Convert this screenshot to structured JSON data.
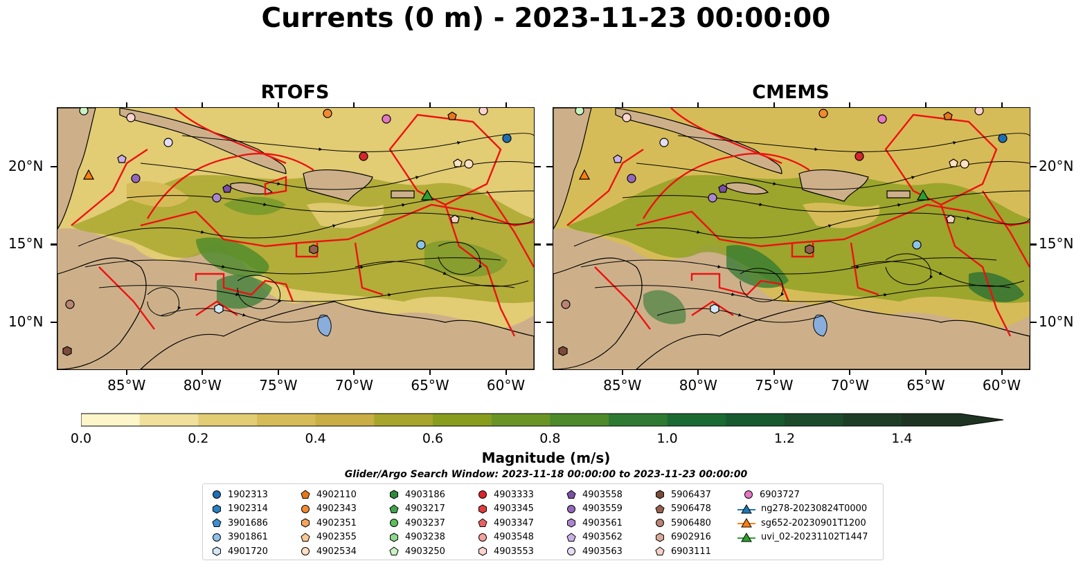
{
  "title": "Currents (0 m) - 2023-11-23 00:00:00",
  "panels": [
    {
      "title": "RTOFS"
    },
    {
      "title": "CMEMS"
    }
  ],
  "axes": {
    "lat_labels": [
      "20°N",
      "15°N",
      "10°N"
    ],
    "lon_labels": [
      "85°W",
      "80°W",
      "75°W",
      "70°W",
      "65°W",
      "60°W"
    ],
    "lat_values": [
      20,
      15,
      10
    ],
    "lon_values": [
      -85,
      -80,
      -75,
      -70,
      -65,
      -60
    ],
    "lon_range": [
      -89.6,
      -58.2
    ],
    "lat_range": [
      7.0,
      23.8
    ]
  },
  "colorbar": {
    "title": "Magnitude (m/s)",
    "tick_labels": [
      "0.0",
      "0.2",
      "0.4",
      "0.6",
      "0.8",
      "1.0",
      "1.2",
      "1.4"
    ],
    "ticks": [
      0.0,
      0.2,
      0.4,
      0.6,
      0.8,
      1.0,
      1.2,
      1.4
    ],
    "range": [
      0.0,
      1.5
    ],
    "extend": "max",
    "colors": [
      "#fcf6c9",
      "#efe19b",
      "#e2cc74",
      "#d6bc58",
      "#c8ae44",
      "#a8a52c",
      "#889d1e",
      "#6a9526",
      "#4c8a2a",
      "#2f7a32",
      "#1c6a33",
      "#175a2f",
      "#1b4b2a",
      "#1e3d26",
      "#1f3322"
    ]
  },
  "legend": {
    "title": "Glider/Argo Search Window: 2023-11-18 00:00:00 to 2023-11-23 00:00:00",
    "columns": [
      [
        {
          "label": "1902313",
          "marker": "circle",
          "color": "#1f6fb4"
        },
        {
          "label": "1902314",
          "marker": "hexagon",
          "color": "#2a80c0"
        },
        {
          "label": "3901686",
          "marker": "pentagon",
          "color": "#3d8fd1"
        },
        {
          "label": "3901861",
          "marker": "circle",
          "color": "#8cc2ea"
        },
        {
          "label": "4901720",
          "marker": "hexagon",
          "color": "#d4e7f7"
        }
      ],
      [
        {
          "label": "4902110",
          "marker": "pentagon",
          "color": "#e8761a"
        },
        {
          "label": "4902343",
          "marker": "circle",
          "color": "#f28a30"
        },
        {
          "label": "4902351",
          "marker": "hexagon",
          "color": "#f7a45a"
        },
        {
          "label": "4902355",
          "marker": "pentagon",
          "color": "#fbc892"
        },
        {
          "label": "4902534",
          "marker": "circle",
          "color": "#fde0c2"
        }
      ],
      [
        {
          "label": "4903186",
          "marker": "hexagon",
          "color": "#2e8b3a"
        },
        {
          "label": "4903217",
          "marker": "pentagon",
          "color": "#3fa34b"
        },
        {
          "label": "4903237",
          "marker": "circle",
          "color": "#5cc05c"
        },
        {
          "label": "4903238",
          "marker": "hexagon",
          "color": "#8ed88a"
        },
        {
          "label": "4903250",
          "marker": "pentagon",
          "color": "#c9f3c2"
        }
      ],
      [
        {
          "label": "4903333",
          "marker": "circle",
          "color": "#d6262b"
        },
        {
          "label": "4903345",
          "marker": "hexagon",
          "color": "#e03c3c"
        },
        {
          "label": "4903347",
          "marker": "pentagon",
          "color": "#e96060"
        },
        {
          "label": "4903548",
          "marker": "circle",
          "color": "#f4a09c"
        },
        {
          "label": "4903553",
          "marker": "hexagon",
          "color": "#fbd3cf"
        }
      ],
      [
        {
          "label": "4903558",
          "marker": "pentagon",
          "color": "#7b4fa8"
        },
        {
          "label": "4903559",
          "marker": "circle",
          "color": "#9467bd"
        },
        {
          "label": "4903561",
          "marker": "hexagon",
          "color": "#ad86d1"
        },
        {
          "label": "4903562",
          "marker": "pentagon",
          "color": "#cbb0e6"
        },
        {
          "label": "4903563",
          "marker": "circle",
          "color": "#e7dcf5"
        }
      ],
      [
        {
          "label": "5906437",
          "marker": "hexagon",
          "color": "#7a4b3a"
        },
        {
          "label": "5906478",
          "marker": "pentagon",
          "color": "#96604e"
        },
        {
          "label": "5906480",
          "marker": "circle",
          "color": "#b98473"
        },
        {
          "label": "6902916",
          "marker": "hexagon",
          "color": "#d8aa99"
        },
        {
          "label": "6903111",
          "marker": "pentagon",
          "color": "#f2d2c6"
        }
      ],
      [
        {
          "label": "6903727",
          "marker": "circle",
          "color": "#e377c2"
        },
        {
          "label": "ng278-20230824T0000",
          "marker": "triangle-line",
          "color": "#1f77b4"
        },
        {
          "label": "sg652-20230901T1200",
          "marker": "triangle-line",
          "color": "#ff7f0e"
        },
        {
          "label": "uvi_02-20231102T1447",
          "marker": "triangle-line",
          "color": "#2ca02c"
        }
      ]
    ]
  }
}
